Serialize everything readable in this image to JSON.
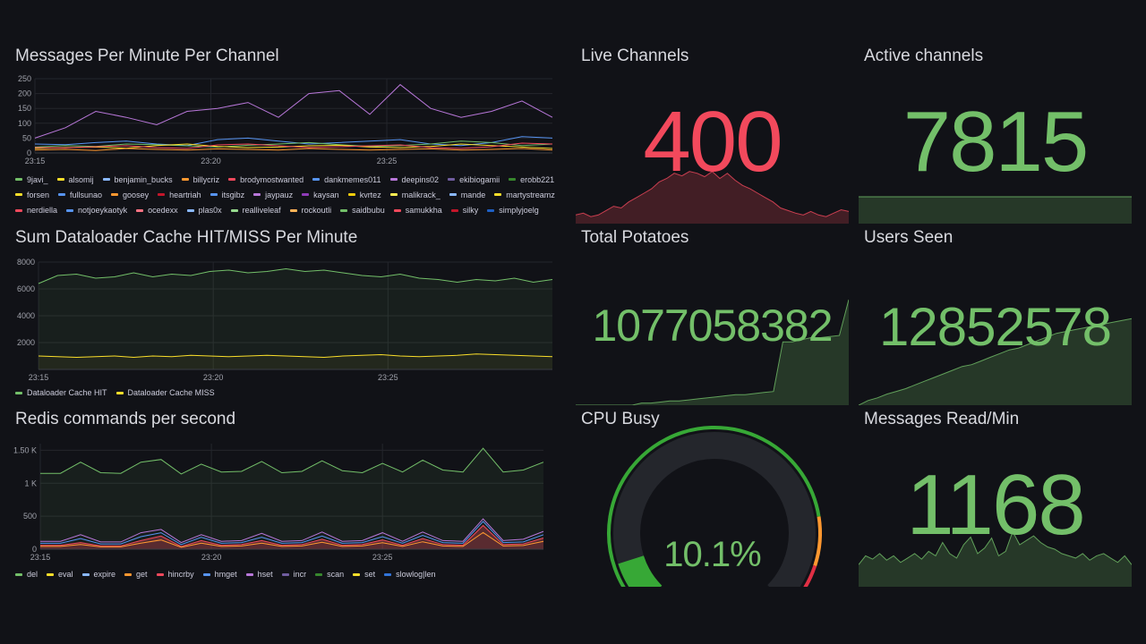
{
  "colors": {
    "background": "#111217",
    "title": "#d8d9df",
    "green": "#73bf69",
    "red": "#f2495c",
    "orange": "#ff9830",
    "yellow": "#fade2a",
    "grid": "#24262c"
  },
  "panels": {
    "messages": {
      "title": "Messages Per Minute Per Channel",
      "chart_data": {
        "type": "line",
        "x": [
          "23:13",
          "23:14",
          "23:15",
          "23:16",
          "23:17",
          "23:18",
          "23:19",
          "23:20",
          "23:21",
          "23:22",
          "23:23",
          "23:24",
          "23:25",
          "23:26",
          "23:27",
          "23:28",
          "23:29",
          "23:30"
        ],
        "xticks": [
          "23:15",
          "23:20",
          "23:25"
        ],
        "yticks": [
          "250",
          "200",
          "150",
          "100",
          "50",
          "0"
        ],
        "ylim": [
          0,
          250
        ],
        "series_top": [
          50,
          85,
          140,
          120,
          95,
          140,
          150,
          170,
          120,
          200,
          210,
          130,
          230,
          150,
          120,
          140,
          175,
          120
        ],
        "series_bg": [
          [
            30,
            28,
            35,
            40,
            30,
            25,
            45,
            50,
            40,
            30,
            35,
            40,
            45,
            30,
            25,
            35,
            55,
            50
          ],
          [
            20,
            25,
            22,
            30,
            28,
            24,
            20,
            26,
            30,
            35,
            28,
            22,
            25,
            30,
            40,
            35,
            25,
            30
          ],
          [
            15,
            18,
            20,
            16,
            25,
            30,
            22,
            18,
            20,
            24,
            26,
            20,
            18,
            22,
            30,
            25,
            20,
            15
          ],
          [
            10,
            12,
            8,
            15,
            12,
            10,
            14,
            12,
            10,
            15,
            12,
            10,
            12,
            14,
            10,
            12,
            15,
            10
          ]
        ]
      },
      "legend": [
        {
          "name": "9javi_",
          "color": "#73bf69"
        },
        {
          "name": "alsomij",
          "color": "#fade2a"
        },
        {
          "name": "benjamin_bucks",
          "color": "#8ab8ff"
        },
        {
          "name": "billycriz",
          "color": "#ff9830"
        },
        {
          "name": "brodymostwanted",
          "color": "#f2495c"
        },
        {
          "name": "dankmemes011",
          "color": "#5794f2"
        },
        {
          "name": "deepins02",
          "color": "#b877d9"
        },
        {
          "name": "ekibiogamii",
          "color": "#705da0"
        },
        {
          "name": "erobb221",
          "color": "#37872d"
        },
        {
          "name": "forsen",
          "color": "#fade2a"
        },
        {
          "name": "fullsunao",
          "color": "#5794f2"
        },
        {
          "name": "goosey",
          "color": "#ff9830"
        },
        {
          "name": "heartriah",
          "color": "#c4162a"
        },
        {
          "name": "itsgibz",
          "color": "#5794f2"
        },
        {
          "name": "jaypauz",
          "color": "#b877d9"
        },
        {
          "name": "kaysan",
          "color": "#8f3bb8"
        },
        {
          "name": "kvrtez",
          "color": "#f2cc0c"
        },
        {
          "name": "malikrack_",
          "color": "#ffee52"
        },
        {
          "name": "mande",
          "color": "#8ab8ff"
        },
        {
          "name": "martystreamz",
          "color": "#fade2a"
        },
        {
          "name": "nerdiella",
          "color": "#f2495c"
        },
        {
          "name": "notjoeykaotyk",
          "color": "#5794f2"
        },
        {
          "name": "ocedexx",
          "color": "#ff7383"
        },
        {
          "name": "plas0x",
          "color": "#8ab8ff"
        },
        {
          "name": "realliveleaf",
          "color": "#96d98d"
        },
        {
          "name": "rockoutli",
          "color": "#ffb357"
        },
        {
          "name": "saidbubu",
          "color": "#73bf69"
        },
        {
          "name": "samukkha",
          "color": "#f2495c"
        },
        {
          "name": "silky",
          "color": "#c4162a"
        },
        {
          "name": "simplyjoelg",
          "color": "#1f60c4"
        }
      ]
    },
    "dataloader": {
      "title": "Sum Dataloader Cache HIT/MISS Per Minute",
      "chart_data": {
        "type": "line",
        "xticks": [
          "23:15",
          "23:20",
          "23:25"
        ],
        "yticks": [
          "8000",
          "6000",
          "4000",
          "2000"
        ],
        "ylim": [
          0,
          8000
        ],
        "series": [
          {
            "name": "Dataloader Cache HIT",
            "color": "#73bf69",
            "values": [
              6400,
              7000,
              7100,
              6800,
              6900,
              7200,
              6900,
              7100,
              7000,
              7300,
              7400,
              7200,
              7300,
              7500,
              7300,
              7400,
              7200,
              7000,
              6900,
              7100,
              6800,
              6700,
              6500,
              6700,
              6600,
              6800,
              6500,
              6700
            ]
          },
          {
            "name": "Dataloader Cache MISS",
            "color": "#fade2a",
            "values": [
              1000,
              950,
              900,
              950,
              1000,
              900,
              1000,
              950,
              1050,
              1000,
              950,
              1000,
              1050,
              1000,
              950,
              900,
              1000,
              1050,
              1100,
              1000,
              950,
              1000,
              1050,
              1150,
              1100,
              1050,
              1000,
              950
            ]
          }
        ]
      }
    },
    "redis": {
      "title": "Redis commands per second",
      "chart_data": {
        "type": "line",
        "xticks": [
          "23:15",
          "23:20",
          "23:25"
        ],
        "yticks": [
          "1.50 K",
          "1 K",
          "500",
          "0"
        ],
        "ylim": [
          0,
          1600
        ],
        "series_top": [
          1150,
          1150,
          1320,
          1160,
          1150,
          1320,
          1360,
          1140,
          1290,
          1170,
          1180,
          1330,
          1160,
          1180,
          1340,
          1190,
          1160,
          1300,
          1170,
          1350,
          1200,
          1170,
          1530,
          1170,
          1200,
          1320
        ],
        "series_low": [
          [
            120,
            120,
            220,
            110,
            110,
            250,
            300,
            100,
            220,
            120,
            130,
            240,
            120,
            130,
            260,
            120,
            130,
            250,
            120,
            260,
            130,
            120,
            460,
            130,
            150,
            270
          ],
          [
            90,
            90,
            160,
            80,
            80,
            190,
            250,
            70,
            180,
            90,
            100,
            180,
            90,
            100,
            200,
            90,
            100,
            190,
            90,
            210,
            100,
            90,
            420,
            100,
            110,
            220
          ],
          [
            60,
            60,
            100,
            50,
            50,
            130,
            200,
            40,
            130,
            60,
            70,
            130,
            60,
            70,
            150,
            60,
            70,
            140,
            60,
            160,
            70,
            60,
            360,
            70,
            80,
            170
          ]
        ],
        "legend": [
          {
            "name": "del",
            "color": "#73bf69"
          },
          {
            "name": "eval",
            "color": "#fade2a"
          },
          {
            "name": "expire",
            "color": "#8ab8ff"
          },
          {
            "name": "get",
            "color": "#ff9830"
          },
          {
            "name": "hincrby",
            "color": "#f2495c"
          },
          {
            "name": "hmget",
            "color": "#5794f2"
          },
          {
            "name": "hset",
            "color": "#b877d9"
          },
          {
            "name": "incr",
            "color": "#705da0"
          },
          {
            "name": "scan",
            "color": "#37872d"
          },
          {
            "name": "set",
            "color": "#fade2a"
          },
          {
            "name": "slowlog|len",
            "color": "#3274d9"
          }
        ]
      }
    },
    "live_channels": {
      "title": "Live Channels",
      "value": "400",
      "color": "#f2495c",
      "spark": [
        10,
        12,
        8,
        10,
        15,
        20,
        18,
        25,
        30,
        35,
        40,
        48,
        52,
        58,
        55,
        60,
        58,
        54,
        60,
        52,
        58,
        50,
        44,
        40,
        35,
        30,
        25,
        18,
        15,
        12,
        10,
        14,
        10,
        8,
        12,
        16,
        14
      ]
    },
    "active_channels": {
      "title": "Active channels",
      "value": "7815",
      "color": "#73bf69",
      "spark": [
        30,
        30,
        30,
        30,
        30,
        30,
        30,
        30,
        30,
        30
      ]
    },
    "total_potatoes": {
      "title": "Total Potatoes",
      "value": "1077058382",
      "color": "#73bf69",
      "spark": [
        0,
        0,
        0,
        0,
        0,
        0,
        0,
        2,
        2,
        3,
        4,
        4,
        5,
        6,
        7,
        8,
        9,
        10,
        10,
        11,
        12,
        13,
        60,
        60,
        62,
        64,
        64,
        65,
        66,
        100
      ]
    },
    "users_seen": {
      "title": "Users Seen",
      "value": "12852578",
      "color": "#73bf69",
      "spark": [
        0,
        5,
        8,
        12,
        15,
        18,
        22,
        26,
        30,
        34,
        38,
        42,
        44,
        48,
        52,
        56,
        60,
        62,
        66,
        70,
        74,
        78,
        80,
        82,
        84,
        86,
        88,
        90,
        92,
        94
      ]
    },
    "cpu_busy": {
      "title": "CPU Busy",
      "value": "10.1%",
      "percent": 10.1,
      "color": "#73bf69"
    },
    "messages_read": {
      "title": "Messages Read/Min",
      "value": "1168",
      "color": "#73bf69",
      "spark": [
        20,
        28,
        25,
        30,
        24,
        28,
        22,
        26,
        30,
        25,
        32,
        28,
        40,
        30,
        26,
        38,
        45,
        30,
        35,
        44,
        28,
        32,
        50,
        38,
        42,
        46,
        40,
        36,
        34,
        30,
        28,
        26,
        30,
        24,
        28,
        30,
        26,
        22,
        28,
        20
      ]
    }
  }
}
